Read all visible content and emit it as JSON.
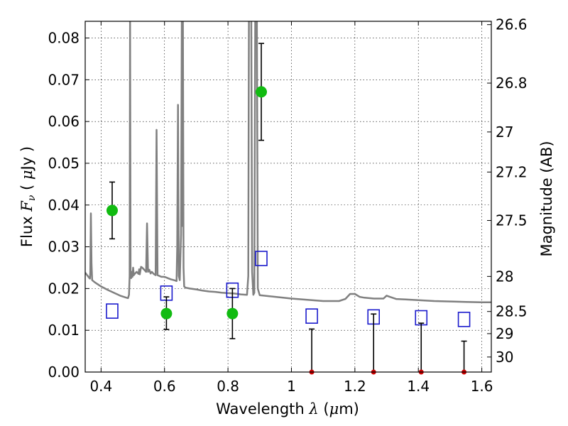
{
  "chart_data": {
    "type": "scatter",
    "xlabel": "Wavelength  λ (μm)",
    "ylabel": "Flux  Fν  ( μJy )",
    "y2label": "Magnitude (AB)",
    "xlim": [
      0.35,
      1.63
    ],
    "ylim": [
      0.0,
      0.084
    ],
    "grid": true,
    "x_ticks": [
      0.4,
      0.6,
      0.8,
      1.0,
      1.2,
      1.4,
      1.6
    ],
    "x_tick_labels": [
      "0.4",
      "0.6",
      "0.8",
      "1",
      "1.2",
      "1.4",
      "1.6"
    ],
    "y_ticks": [
      0.0,
      0.01,
      0.02,
      0.03,
      0.04,
      0.05,
      0.06,
      0.07,
      0.08
    ],
    "y_tick_labels": [
      "0.00",
      "0.01",
      "0.02",
      "0.03",
      "0.04",
      "0.05",
      "0.06",
      "0.07",
      "0.08"
    ],
    "mag_ticks": [
      {
        "label": "26.6",
        "flux": 0.0832
      },
      {
        "label": "26.8",
        "flux": 0.0692
      },
      {
        "label": "27",
        "flux": 0.0575
      },
      {
        "label": "27.2",
        "flux": 0.0479
      },
      {
        "label": "27.5",
        "flux": 0.0363
      },
      {
        "label": "28",
        "flux": 0.0229
      },
      {
        "label": "28.5",
        "flux": 0.0145
      },
      {
        "label": "29",
        "flux": 0.0092
      },
      {
        "label": "30",
        "flux": 0.0036
      }
    ],
    "colors": {
      "model": "#808080",
      "observed": "#11bb11",
      "model_photometry": "#1a1acc",
      "upper_limit": "#cc0000",
      "errorbar": "#000000"
    },
    "observed_points": [
      {
        "x": 0.435,
        "y": 0.0387,
        "err_lo": 0.0068,
        "err_hi": 0.0068
      },
      {
        "x": 0.606,
        "y": 0.014,
        "err_lo": 0.0038,
        "err_hi": 0.004
      },
      {
        "x": 0.814,
        "y": 0.014,
        "err_lo": 0.006,
        "err_hi": 0.006
      },
      {
        "x": 0.905,
        "y": 0.0671,
        "err_lo": 0.0116,
        "err_hi": 0.0116
      }
    ],
    "upper_limits": [
      {
        "x": 1.064,
        "y": 0.0,
        "limit": 0.0103
      },
      {
        "x": 1.259,
        "y": 0.0,
        "limit": 0.0139
      },
      {
        "x": 1.409,
        "y": 0.0,
        "limit": 0.0117
      },
      {
        "x": 1.544,
        "y": 0.0,
        "limit": 0.0074
      }
    ],
    "model_photometry": [
      {
        "x": 0.435,
        "y": 0.0146
      },
      {
        "x": 0.606,
        "y": 0.0189
      },
      {
        "x": 0.814,
        "y": 0.0196
      },
      {
        "x": 0.905,
        "y": 0.0272
      },
      {
        "x": 1.064,
        "y": 0.0134
      },
      {
        "x": 1.259,
        "y": 0.0132
      },
      {
        "x": 1.409,
        "y": 0.013
      },
      {
        "x": 1.544,
        "y": 0.0126
      }
    ],
    "model_spectrum": [
      [
        0.35,
        0.0238
      ],
      [
        0.36,
        0.0228
      ],
      [
        0.363,
        0.0225
      ],
      [
        0.365,
        0.0224
      ],
      [
        0.366,
        0.024
      ],
      [
        0.368,
        0.038
      ],
      [
        0.37,
        0.026
      ],
      [
        0.372,
        0.022
      ],
      [
        0.38,
        0.0215
      ],
      [
        0.4,
        0.0205
      ],
      [
        0.42,
        0.0197
      ],
      [
        0.44,
        0.019
      ],
      [
        0.46,
        0.0183
      ],
      [
        0.48,
        0.0178
      ],
      [
        0.485,
        0.0177
      ],
      [
        0.488,
        0.0185
      ],
      [
        0.49,
        0.023
      ],
      [
        0.4915,
        0.085
      ],
      [
        0.493,
        0.024
      ],
      [
        0.495,
        0.0225
      ],
      [
        0.497,
        0.024
      ],
      [
        0.499,
        0.0228
      ],
      [
        0.501,
        0.025
      ],
      [
        0.503,
        0.0232
      ],
      [
        0.506,
        0.0235
      ],
      [
        0.512,
        0.024
      ],
      [
        0.518,
        0.0235
      ],
      [
        0.52,
        0.0246
      ],
      [
        0.522,
        0.0234
      ],
      [
        0.526,
        0.0252
      ],
      [
        0.53,
        0.025
      ],
      [
        0.536,
        0.0245
      ],
      [
        0.542,
        0.024
      ],
      [
        0.545,
        0.0356
      ],
      [
        0.548,
        0.024
      ],
      [
        0.552,
        0.0245
      ],
      [
        0.556,
        0.0236
      ],
      [
        0.56,
        0.024
      ],
      [
        0.566,
        0.0235
      ],
      [
        0.572,
        0.0232
      ],
      [
        0.575,
        0.058
      ],
      [
        0.578,
        0.0232
      ],
      [
        0.584,
        0.023
      ],
      [
        0.59,
        0.0228
      ],
      [
        0.6,
        0.0228
      ],
      [
        0.61,
        0.0225
      ],
      [
        0.62,
        0.0222
      ],
      [
        0.63,
        0.022
      ],
      [
        0.638,
        0.0218
      ],
      [
        0.64,
        0.03
      ],
      [
        0.6425,
        0.064
      ],
      [
        0.645,
        0.023
      ],
      [
        0.648,
        0.022
      ],
      [
        0.652,
        0.033
      ],
      [
        0.6545,
        0.085
      ],
      [
        0.656,
        0.035
      ],
      [
        0.658,
        0.085
      ],
      [
        0.66,
        0.025
      ],
      [
        0.662,
        0.0205
      ],
      [
        0.666,
        0.0202
      ],
      [
        0.68,
        0.02
      ],
      [
        0.7,
        0.0198
      ],
      [
        0.72,
        0.0195
      ],
      [
        0.74,
        0.0193
      ],
      [
        0.76,
        0.0192
      ],
      [
        0.78,
        0.019
      ],
      [
        0.8,
        0.0189
      ],
      [
        0.82,
        0.0188
      ],
      [
        0.84,
        0.0186
      ],
      [
        0.86,
        0.0185
      ],
      [
        0.864,
        0.023
      ],
      [
        0.866,
        0.085
      ],
      [
        0.8735,
        0.085
      ],
      [
        0.876,
        0.024
      ],
      [
        0.88,
        0.0185
      ],
      [
        0.883,
        0.019
      ],
      [
        0.886,
        0.085
      ],
      [
        0.891,
        0.085
      ],
      [
        0.894,
        0.02
      ],
      [
        0.9,
        0.0184
      ],
      [
        0.95,
        0.018
      ],
      [
        1.0,
        0.0176
      ],
      [
        1.05,
        0.0173
      ],
      [
        1.1,
        0.017
      ],
      [
        1.15,
        0.017
      ],
      [
        1.17,
        0.0175
      ],
      [
        1.185,
        0.0187
      ],
      [
        1.2,
        0.0187
      ],
      [
        1.215,
        0.018
      ],
      [
        1.23,
        0.0178
      ],
      [
        1.26,
        0.0176
      ],
      [
        1.29,
        0.0176
      ],
      [
        1.3,
        0.0183
      ],
      [
        1.31,
        0.018
      ],
      [
        1.33,
        0.0175
      ],
      [
        1.36,
        0.0174
      ],
      [
        1.4,
        0.0172
      ],
      [
        1.45,
        0.017
      ],
      [
        1.5,
        0.0169
      ],
      [
        1.55,
        0.0168
      ],
      [
        1.6,
        0.0167
      ],
      [
        1.63,
        0.0167
      ]
    ]
  }
}
